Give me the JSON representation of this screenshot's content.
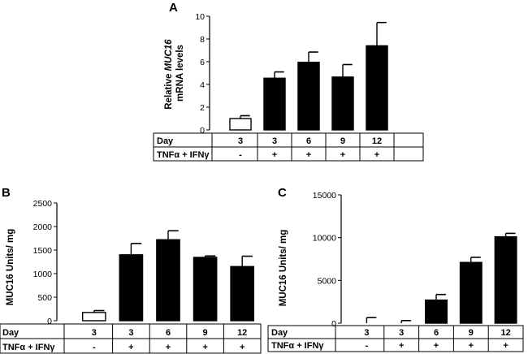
{
  "figure": {
    "table_row_labels": {
      "day": "Day",
      "treatment": "TNFα + IFNγ"
    }
  },
  "chart_data": [
    {
      "type": "bar",
      "panel": "A",
      "ylabel": "Relative MUC16 mRNA levels",
      "ylabel_lines": [
        "Relative MUC16",
        "mRNA levels"
      ],
      "ylabel_italic_word": "MUC16",
      "ylim": [
        0,
        10
      ],
      "yticks": [
        0,
        2,
        4,
        6,
        8,
        10
      ],
      "tick_labels": [
        "0",
        "2",
        "4",
        "6",
        "8",
        "10"
      ],
      "categories": [
        "3",
        "3",
        "6",
        "9",
        "12"
      ],
      "treatment": [
        "-",
        "+",
        "+",
        "+",
        "+"
      ],
      "values": [
        1.0,
        4.55,
        5.95,
        4.65,
        7.4
      ],
      "errors": [
        0.25,
        0.55,
        0.9,
        1.1,
        2.05
      ],
      "bar_colors": [
        "#ffffff",
        "#000000",
        "#000000",
        "#000000",
        "#000000"
      ],
      "grid": false,
      "legend": false
    },
    {
      "type": "bar",
      "panel": "B",
      "ylabel": "MUC16 Units/ mg",
      "ylim": [
        0,
        2500
      ],
      "yticks": [
        0,
        500,
        1000,
        1500,
        2000,
        2500
      ],
      "tick_labels": [
        "0",
        "500",
        "1000",
        "1500",
        "2000",
        "2500"
      ],
      "categories": [
        "3",
        "3",
        "6",
        "9",
        "12"
      ],
      "treatment": [
        "-",
        "+",
        "+",
        "+",
        "+"
      ],
      "values": [
        175,
        1400,
        1720,
        1345,
        1150
      ],
      "errors": [
        40,
        240,
        190,
        30,
        220
      ],
      "bar_colors": [
        "#ffffff",
        "#000000",
        "#000000",
        "#000000",
        "#000000"
      ],
      "grid": false,
      "legend": false
    },
    {
      "type": "bar",
      "panel": "C",
      "ylabel": "MUC16 Units/ mg",
      "ylim": [
        0,
        15000
      ],
      "yticks": [
        0,
        5000,
        10000,
        15000
      ],
      "tick_labels": [
        "0",
        "5000",
        "10000",
        "15000"
      ],
      "categories": [
        "3",
        "3",
        "6",
        "9",
        "12"
      ],
      "treatment": [
        "-",
        "+",
        "+",
        "+",
        "+"
      ],
      "values": [
        0,
        0,
        2700,
        7100,
        10100
      ],
      "errors": [
        650,
        300,
        650,
        600,
        400
      ],
      "bar_colors": [
        "#ffffff",
        "#000000",
        "#000000",
        "#000000",
        "#000000"
      ],
      "grid": false,
      "legend": false
    }
  ]
}
